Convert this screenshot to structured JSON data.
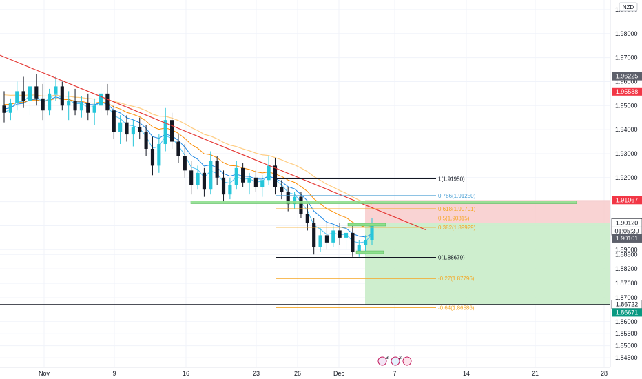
{
  "currency": "NZD",
  "colors": {
    "bull": "#26c6da",
    "bear": "#131722",
    "trendline": "#e53935",
    "fib_gold": "#f5a623",
    "fib_blue": "#4a9fd4",
    "fib_black": "#131722",
    "stop_zone": "#f8c8c8",
    "target_zone": "#c9ecc9",
    "support_box": "#8ee08e",
    "ma_fast": "#4fc3f7",
    "ma_mid": "#1e88e5",
    "ma_slow": "#fb8c00",
    "ma_long": "#ffcc80"
  },
  "events_icons": [
    "calendar-flag-icon",
    "calendar-flag-icon",
    "calendar-flag-icon"
  ],
  "event_badges": [
    "3",
    "2"
  ],
  "chart_data": {
    "type": "candlestick",
    "title": "",
    "xlabel": "",
    "ylabel": "",
    "ylim": [
      1.841,
      1.994
    ],
    "x_ticks": [
      "Nov",
      "9",
      "16",
      "23",
      "26",
      "Dec",
      "7",
      "14",
      "21",
      "28"
    ],
    "y_ticks": [
      "1.99000",
      "1.98000",
      "1.97000",
      "1.96000",
      "1.95000",
      "1.94000",
      "1.93000",
      "1.92000",
      "1.91000",
      "1.90000",
      "1.89000",
      "1.88800",
      "1.88200",
      "1.87600",
      "1.87000",
      "1.86000",
      "1.85500",
      "1.85000",
      "1.84500"
    ],
    "price_labels": [
      {
        "value": "1.96225",
        "kind": "gray"
      },
      {
        "value": "1.95588",
        "kind": "red"
      },
      {
        "value": "1.91067",
        "kind": "red"
      },
      {
        "value": "1.90120",
        "kind": "black"
      },
      {
        "value": "01:05:30",
        "kind": "timer"
      },
      {
        "value": "1.90101",
        "kind": "gray"
      },
      {
        "value": "1.86722",
        "kind": "black"
      },
      {
        "value": "1.86671",
        "kind": "green"
      }
    ],
    "fib_levels": [
      {
        "label": "1(1.91950)",
        "value": 1.9195,
        "color": "black"
      },
      {
        "label": "0.786(1.91250)",
        "value": 1.9125,
        "color": "blue"
      },
      {
        "label": "0.618(1.90701)",
        "value": 1.90701,
        "color": "gold"
      },
      {
        "label": "0.5(1.90315)",
        "value": 1.90315,
        "color": "gold"
      },
      {
        "label": "0.382(1.89929)",
        "value": 1.89929,
        "color": "gold"
      },
      {
        "label": "0(1.88679)",
        "value": 1.88679,
        "color": "black"
      },
      {
        "label": "-0.27(1.87796)",
        "value": 1.87796,
        "color": "gold"
      },
      {
        "label": "-0.64(1.86586)",
        "value": 1.86586,
        "color": "gold"
      }
    ],
    "trade": {
      "entry": 1.9012,
      "stop": 1.91067,
      "target": 1.86722
    },
    "current_price": 1.9012,
    "candles": [
      {
        "o": 1.95,
        "h": 1.956,
        "l": 1.943,
        "c": 1.947
      },
      {
        "o": 1.947,
        "h": 1.953,
        "l": 1.944,
        "c": 1.951
      },
      {
        "o": 1.951,
        "h": 1.96,
        "l": 1.948,
        "c": 1.956
      },
      {
        "o": 1.956,
        "h": 1.962,
        "l": 1.949,
        "c": 1.952
      },
      {
        "o": 1.952,
        "h": 1.96,
        "l": 1.946,
        "c": 1.958
      },
      {
        "o": 1.958,
        "h": 1.963,
        "l": 1.95,
        "c": 1.953
      },
      {
        "o": 1.953,
        "h": 1.959,
        "l": 1.944,
        "c": 1.948
      },
      {
        "o": 1.948,
        "h": 1.957,
        "l": 1.946,
        "c": 1.955
      },
      {
        "o": 1.955,
        "h": 1.962,
        "l": 1.952,
        "c": 1.958
      },
      {
        "o": 1.958,
        "h": 1.96,
        "l": 1.948,
        "c": 1.95
      },
      {
        "o": 1.95,
        "h": 1.956,
        "l": 1.944,
        "c": 1.952
      },
      {
        "o": 1.952,
        "h": 1.957,
        "l": 1.946,
        "c": 1.948
      },
      {
        "o": 1.948,
        "h": 1.954,
        "l": 1.945,
        "c": 1.951
      },
      {
        "o": 1.951,
        "h": 1.955,
        "l": 1.944,
        "c": 1.947
      },
      {
        "o": 1.947,
        "h": 1.953,
        "l": 1.942,
        "c": 1.95
      },
      {
        "o": 1.95,
        "h": 1.958,
        "l": 1.947,
        "c": 1.955
      },
      {
        "o": 1.955,
        "h": 1.959,
        "l": 1.946,
        "c": 1.948
      },
      {
        "o": 1.948,
        "h": 1.95,
        "l": 1.936,
        "c": 1.939
      },
      {
        "o": 1.939,
        "h": 1.946,
        "l": 1.934,
        "c": 1.943
      },
      {
        "o": 1.943,
        "h": 1.946,
        "l": 1.935,
        "c": 1.938
      },
      {
        "o": 1.938,
        "h": 1.944,
        "l": 1.933,
        "c": 1.941
      },
      {
        "o": 1.941,
        "h": 1.945,
        "l": 1.936,
        "c": 1.939
      },
      {
        "o": 1.939,
        "h": 1.942,
        "l": 1.929,
        "c": 1.932
      },
      {
        "o": 1.932,
        "h": 1.937,
        "l": 1.921,
        "c": 1.925
      },
      {
        "o": 1.925,
        "h": 1.938,
        "l": 1.922,
        "c": 1.934
      },
      {
        "o": 1.934,
        "h": 1.949,
        "l": 1.931,
        "c": 1.944
      },
      {
        "o": 1.944,
        "h": 1.947,
        "l": 1.932,
        "c": 1.935
      },
      {
        "o": 1.935,
        "h": 1.938,
        "l": 1.926,
        "c": 1.929
      },
      {
        "o": 1.929,
        "h": 1.934,
        "l": 1.92,
        "c": 1.923
      },
      {
        "o": 1.923,
        "h": 1.927,
        "l": 1.913,
        "c": 1.917
      },
      {
        "o": 1.917,
        "h": 1.925,
        "l": 1.915,
        "c": 1.922
      },
      {
        "o": 1.922,
        "h": 1.924,
        "l": 1.912,
        "c": 1.915
      },
      {
        "o": 1.915,
        "h": 1.931,
        "l": 1.913,
        "c": 1.927
      },
      {
        "o": 1.927,
        "h": 1.929,
        "l": 1.917,
        "c": 1.92
      },
      {
        "o": 1.92,
        "h": 1.923,
        "l": 1.91,
        "c": 1.913
      },
      {
        "o": 1.913,
        "h": 1.92,
        "l": 1.911,
        "c": 1.917
      },
      {
        "o": 1.917,
        "h": 1.927,
        "l": 1.915,
        "c": 1.924
      },
      {
        "o": 1.924,
        "h": 1.926,
        "l": 1.916,
        "c": 1.918
      },
      {
        "o": 1.918,
        "h": 1.922,
        "l": 1.913,
        "c": 1.92
      },
      {
        "o": 1.92,
        "h": 1.923,
        "l": 1.914,
        "c": 1.916
      },
      {
        "o": 1.916,
        "h": 1.921,
        "l": 1.912,
        "c": 1.919
      },
      {
        "o": 1.919,
        "h": 1.929,
        "l": 1.917,
        "c": 1.925
      },
      {
        "o": 1.925,
        "h": 1.928,
        "l": 1.913,
        "c": 1.916
      },
      {
        "o": 1.916,
        "h": 1.919,
        "l": 1.911,
        "c": 1.914
      },
      {
        "o": 1.914,
        "h": 1.916,
        "l": 1.906,
        "c": 1.909
      },
      {
        "o": 1.909,
        "h": 1.914,
        "l": 1.907,
        "c": 1.912
      },
      {
        "o": 1.912,
        "h": 1.914,
        "l": 1.903,
        "c": 1.905
      },
      {
        "o": 1.905,
        "h": 1.909,
        "l": 1.898,
        "c": 1.901
      },
      {
        "o": 1.901,
        "h": 1.903,
        "l": 1.888,
        "c": 1.891
      },
      {
        "o": 1.891,
        "h": 1.899,
        "l": 1.889,
        "c": 1.896
      },
      {
        "o": 1.896,
        "h": 1.901,
        "l": 1.89,
        "c": 1.893
      },
      {
        "o": 1.893,
        "h": 1.9,
        "l": 1.891,
        "c": 1.898
      },
      {
        "o": 1.898,
        "h": 1.901,
        "l": 1.892,
        "c": 1.895
      },
      {
        "o": 1.895,
        "h": 1.9,
        "l": 1.89,
        "c": 1.897
      },
      {
        "o": 1.897,
        "h": 1.9,
        "l": 1.887,
        "c": 1.889
      },
      {
        "o": 1.889,
        "h": 1.894,
        "l": 1.887,
        "c": 1.892
      },
      {
        "o": 1.892,
        "h": 1.896,
        "l": 1.888,
        "c": 1.894
      },
      {
        "o": 1.894,
        "h": 1.903,
        "l": 1.892,
        "c": 1.901
      }
    ]
  }
}
